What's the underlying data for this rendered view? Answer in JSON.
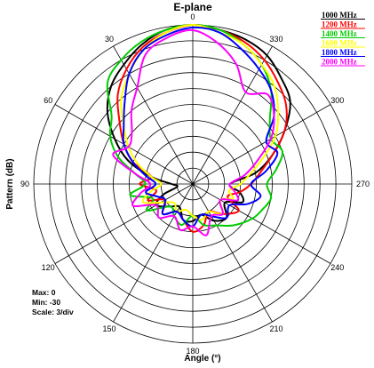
{
  "chart_data": {
    "type": "polar",
    "title": "E-plane",
    "radial_label": "Pattern (dB)",
    "angular_label": "Angle  (°)",
    "angle_ticks": [
      {
        "angle": 0,
        "label": "0"
      },
      {
        "angle": 30,
        "label": "30"
      },
      {
        "angle": 60,
        "label": "60"
      },
      {
        "angle": 90,
        "label": "90"
      },
      {
        "angle": 120,
        "label": "120"
      },
      {
        "angle": 150,
        "label": "150"
      },
      {
        "angle": 180,
        "label": "180"
      },
      {
        "angle": 210,
        "label": "210"
      },
      {
        "angle": 240,
        "label": "240"
      },
      {
        "angle": 270,
        "label": "270"
      },
      {
        "angle": 300,
        "label": "300"
      },
      {
        "angle": 330,
        "label": "330"
      }
    ],
    "angle_direction": "counterclockwise, 0 at top",
    "r_max_db": 0,
    "r_min_db": -30,
    "ring_step_db": 3,
    "legend_position": "top-right",
    "info": {
      "max": "Max: 0",
      "min": "Min: -30",
      "scale": "Scale: 3/div"
    },
    "series": [
      {
        "name": "1000 MHz",
        "color": "#000000",
        "points": [
          [
            0,
            0
          ],
          [
            10,
            -0.5
          ],
          [
            20,
            -2
          ],
          [
            30,
            -4
          ],
          [
            40,
            -6
          ],
          [
            50,
            -9
          ],
          [
            60,
            -13
          ],
          [
            70,
            -17
          ],
          [
            80,
            -22
          ],
          [
            90,
            -26
          ],
          [
            100,
            -27
          ],
          [
            110,
            -24
          ],
          [
            120,
            -22
          ],
          [
            135,
            -24
          ],
          [
            150,
            -25
          ],
          [
            165,
            -23
          ],
          [
            180,
            -23
          ],
          [
            195,
            -24
          ],
          [
            210,
            -22
          ],
          [
            225,
            -21
          ],
          [
            240,
            -23
          ],
          [
            250,
            -20
          ],
          [
            260,
            -21
          ],
          [
            270,
            -23
          ],
          [
            280,
            -18
          ],
          [
            290,
            -14
          ],
          [
            300,
            -10
          ],
          [
            310,
            -6
          ],
          [
            320,
            -4
          ],
          [
            330,
            -2
          ],
          [
            340,
            -1
          ],
          [
            350,
            -0.5
          ]
        ]
      },
      {
        "name": "1200 MHz",
        "color": "#ff0000",
        "points": [
          [
            0,
            0
          ],
          [
            10,
            -1
          ],
          [
            20,
            -2.5
          ],
          [
            30,
            -5
          ],
          [
            40,
            -8
          ],
          [
            50,
            -12
          ],
          [
            60,
            -15
          ],
          [
            70,
            -18
          ],
          [
            80,
            -22
          ],
          [
            90,
            -20
          ],
          [
            100,
            -23
          ],
          [
            110,
            -21
          ],
          [
            120,
            -24
          ],
          [
            135,
            -22
          ],
          [
            150,
            -24
          ],
          [
            165,
            -23
          ],
          [
            180,
            -21
          ],
          [
            195,
            -22
          ],
          [
            210,
            -24
          ],
          [
            225,
            -22
          ],
          [
            240,
            -20
          ],
          [
            250,
            -23
          ],
          [
            260,
            -21
          ],
          [
            270,
            -19
          ],
          [
            280,
            -17
          ],
          [
            290,
            -14
          ],
          [
            300,
            -10
          ],
          [
            310,
            -7
          ],
          [
            320,
            -5
          ],
          [
            330,
            -3
          ],
          [
            340,
            -1.5
          ],
          [
            350,
            -0.5
          ]
        ]
      },
      {
        "name": "1400 MHz",
        "color": "#00cc00",
        "points": [
          [
            0,
            0
          ],
          [
            10,
            -0.5
          ],
          [
            20,
            -1.5
          ],
          [
            30,
            -3
          ],
          [
            40,
            -5
          ],
          [
            50,
            -10
          ],
          [
            60,
            -12
          ],
          [
            70,
            -15
          ],
          [
            80,
            -19
          ],
          [
            90,
            -21
          ],
          [
            100,
            -18
          ],
          [
            110,
            -22
          ],
          [
            120,
            -20
          ],
          [
            135,
            -24
          ],
          [
            150,
            -23
          ],
          [
            165,
            -22
          ],
          [
            180,
            -24
          ],
          [
            195,
            -22
          ],
          [
            210,
            -21
          ],
          [
            225,
            -19
          ],
          [
            240,
            -17
          ],
          [
            250,
            -16
          ],
          [
            260,
            -15
          ],
          [
            270,
            -16
          ],
          [
            280,
            -14
          ],
          [
            290,
            -12
          ],
          [
            300,
            -13
          ],
          [
            310,
            -11
          ],
          [
            320,
            -7
          ],
          [
            330,
            -4
          ],
          [
            340,
            -2
          ],
          [
            350,
            -0.5
          ]
        ]
      },
      {
        "name": "1600 MHz",
        "color": "#ffff00",
        "points": [
          [
            0,
            0
          ],
          [
            10,
            -1
          ],
          [
            20,
            -3
          ],
          [
            30,
            -6
          ],
          [
            40,
            -9
          ],
          [
            50,
            -13
          ],
          [
            60,
            -16
          ],
          [
            70,
            -19
          ],
          [
            80,
            -22
          ],
          [
            90,
            -24
          ],
          [
            100,
            -22
          ],
          [
            110,
            -20
          ],
          [
            120,
            -23
          ],
          [
            135,
            -25
          ],
          [
            150,
            -24
          ],
          [
            165,
            -25
          ],
          [
            180,
            -24
          ],
          [
            195,
            -23
          ],
          [
            210,
            -24
          ],
          [
            225,
            -22
          ],
          [
            240,
            -24
          ],
          [
            250,
            -22
          ],
          [
            260,
            -23
          ],
          [
            270,
            -21
          ],
          [
            280,
            -19
          ],
          [
            290,
            -16
          ],
          [
            300,
            -12
          ],
          [
            310,
            -9
          ],
          [
            320,
            -6
          ],
          [
            330,
            -4
          ],
          [
            340,
            -2
          ],
          [
            350,
            -1
          ]
        ]
      },
      {
        "name": "1800 MHz",
        "color": "#0000ff",
        "points": [
          [
            0,
            -0.5
          ],
          [
            10,
            -1.5
          ],
          [
            20,
            -3
          ],
          [
            30,
            -6
          ],
          [
            40,
            -10
          ],
          [
            50,
            -13
          ],
          [
            60,
            -15
          ],
          [
            70,
            -18
          ],
          [
            80,
            -21
          ],
          [
            90,
            -23
          ],
          [
            100,
            -21
          ],
          [
            110,
            -23
          ],
          [
            120,
            -24
          ],
          [
            135,
            -22
          ],
          [
            150,
            -24
          ],
          [
            165,
            -23
          ],
          [
            180,
            -22
          ],
          [
            195,
            -24
          ],
          [
            210,
            -23
          ],
          [
            225,
            -21
          ],
          [
            240,
            -22
          ],
          [
            250,
            -19
          ],
          [
            260,
            -17
          ],
          [
            270,
            -19
          ],
          [
            280,
            -16
          ],
          [
            290,
            -13
          ],
          [
            300,
            -14
          ],
          [
            310,
            -10
          ],
          [
            320,
            -7
          ],
          [
            330,
            -5
          ],
          [
            340,
            -3
          ],
          [
            350,
            -1
          ]
        ]
      },
      {
        "name": "2000 MHz",
        "color": "#ff00ff",
        "points": [
          [
            0,
            -1
          ],
          [
            10,
            -2
          ],
          [
            20,
            -4
          ],
          [
            30,
            -9
          ],
          [
            40,
            -12
          ],
          [
            50,
            -15
          ],
          [
            60,
            -16
          ],
          [
            70,
            -14
          ],
          [
            80,
            -19
          ],
          [
            90,
            -22
          ],
          [
            100,
            -20
          ],
          [
            110,
            -18
          ],
          [
            120,
            -22
          ],
          [
            135,
            -21
          ],
          [
            150,
            -23
          ],
          [
            165,
            -21
          ],
          [
            180,
            -22
          ],
          [
            195,
            -20
          ],
          [
            210,
            -23
          ],
          [
            225,
            -22
          ],
          [
            240,
            -24
          ],
          [
            250,
            -21
          ],
          [
            260,
            -22
          ],
          [
            270,
            -23
          ],
          [
            280,
            -20
          ],
          [
            290,
            -17
          ],
          [
            300,
            -13
          ],
          [
            310,
            -10
          ],
          [
            320,
            -8
          ],
          [
            330,
            -10
          ],
          [
            340,
            -6
          ],
          [
            350,
            -3
          ]
        ]
      }
    ]
  }
}
